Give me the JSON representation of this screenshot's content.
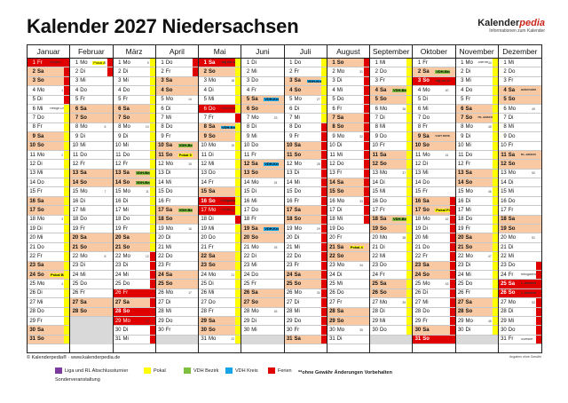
{
  "title": "Kalender 2027 Niedersachsen",
  "logo": {
    "name_a": "Kalender",
    "name_b": "pedia",
    "tagline": "Informationen zum Kalender"
  },
  "months": [
    {
      "name": "Januar",
      "start_wd": 4,
      "days": 31
    },
    {
      "name": "Februar",
      "start_wd": 0,
      "days": 28
    },
    {
      "name": "März",
      "start_wd": 0,
      "days": 31
    },
    {
      "name": "April",
      "start_wd": 3,
      "days": 30
    },
    {
      "name": "Mai",
      "start_wd": 5,
      "days": 31
    },
    {
      "name": "Juni",
      "start_wd": 1,
      "days": 30
    },
    {
      "name": "Juli",
      "start_wd": 3,
      "days": 31
    },
    {
      "name": "August",
      "start_wd": 6,
      "days": 31
    },
    {
      "name": "September",
      "start_wd": 2,
      "days": 30
    },
    {
      "name": "Oktober",
      "start_wd": 4,
      "days": 31
    },
    {
      "name": "November",
      "start_wd": 0,
      "days": 30
    },
    {
      "name": "Dezember",
      "start_wd": 2,
      "days": 31
    }
  ],
  "weekday_abbr": [
    "Mo",
    "Di",
    "Mi",
    "Do",
    "Fr",
    "Sa",
    "So"
  ],
  "holidays": {
    "0": [
      1
    ],
    "2": [
      26,
      28,
      29
    ],
    "4": [
      1,
      6,
      16,
      17
    ],
    "9": [
      3,
      31
    ],
    "11": [
      25,
      26
    ]
  },
  "strips": {
    "0": [
      [
        1,
        5,
        "f"
      ]
    ],
    "1": [
      [
        1,
        2,
        "f"
      ]
    ],
    "2": [
      [
        22,
        31,
        "f"
      ]
    ],
    "3": [
      [
        1,
        2,
        "f"
      ]
    ],
    "4": [
      [
        7,
        7,
        "f"
      ],
      [
        18,
        18,
        "f"
      ]
    ],
    "6": [
      [
        8,
        31,
        "f"
      ]
    ],
    "7": [
      [
        1,
        18,
        "f"
      ]
    ],
    "9": [
      [
        16,
        30,
        "f"
      ]
    ],
    "11": [
      [
        23,
        31,
        "f"
      ]
    ]
  },
  "pokal_strips": {
    "0": [
      [
        1,
        31
      ]
    ],
    "1": [
      [
        1,
        28
      ]
    ],
    "2": [
      [
        1,
        31
      ]
    ],
    "3": [
      [
        1,
        30
      ]
    ],
    "4": [
      [
        1,
        31
      ]
    ],
    "5": [
      [
        1,
        30
      ]
    ],
    "6": [
      [
        1,
        31
      ]
    ],
    "7": [
      [
        1,
        31
      ]
    ],
    "8": [
      [
        1,
        30
      ]
    ],
    "9": [
      [
        1,
        31
      ]
    ],
    "10": [
      [
        1,
        30
      ]
    ],
    "11": [
      [
        1,
        31
      ]
    ]
  },
  "events": {
    "0": {
      "1": "Neujahr",
      "6": "Heilige Drei Könige",
      "10": "",
      "24": "Pokal Bildung"
    },
    "1": {
      "1": "Pokal Auslosung"
    },
    "2": {
      "13": "VDH-Bezirk",
      "14": "VDH-Bezirk"
    },
    "3": {
      "10": "VDH-Bezirk",
      "11": "Pokal 5 Runde",
      "17": "VDH-Bezirk"
    },
    "4": {
      "1": "Tag der Arbeit",
      "6": "Himmelfahrt",
      "8": "VDH-Kreis",
      "16": "Pfingstsonntag",
      "17": "Pfingstmontag"
    },
    "5": {
      "5": "VDH-Kreis",
      "12": "VDH-Kreis",
      "19": "VDH-Kreis"
    },
    "6": {
      "3": "VDH-Kreis"
    },
    "7": {
      "21": "Pokal 4 Runde"
    },
    "8": {
      "4": "VDH-Bezirk",
      "18": "VDH-Bezirk"
    },
    "9": {
      "2": "VDH-Bezirk",
      "3": "Tag der Deutschen Einheit",
      "9": "VDH Meister",
      "17": "Pokal Finale"
    },
    "10": {
      "1": "Allerheiligen",
      "7": "RL Abschluss"
    },
    "11": {
      "4": "Abschlusst.",
      "11": "RL Abschluss",
      "24": "Heiligabend",
      "25": "1. Weihnachtstag",
      "26": "2. Weihnachtstag",
      "31": "Silvester"
    }
  },
  "footer": {
    "copyright": "© Kalenderpedia® · www.kalenderpedia.de",
    "note": "Angaben ohne Gewähr"
  },
  "legend": {
    "items": [
      {
        "label": "Liga und RL Abschlussturnier",
        "color": "#7a3a9e"
      },
      {
        "label": "Pokal",
        "color": "#ffff00"
      },
      {
        "label": "VDH Bezirk",
        "color": "#7dbf3f"
      },
      {
        "label": "VDH Kreis",
        "color": "#16a6e8"
      },
      {
        "label": "Ferien",
        "color": "#e00000"
      }
    ],
    "sonder": "Sonderveranstaltung",
    "disclaimer": "**ohne Gewähr Änderungen Vorbehalten"
  }
}
